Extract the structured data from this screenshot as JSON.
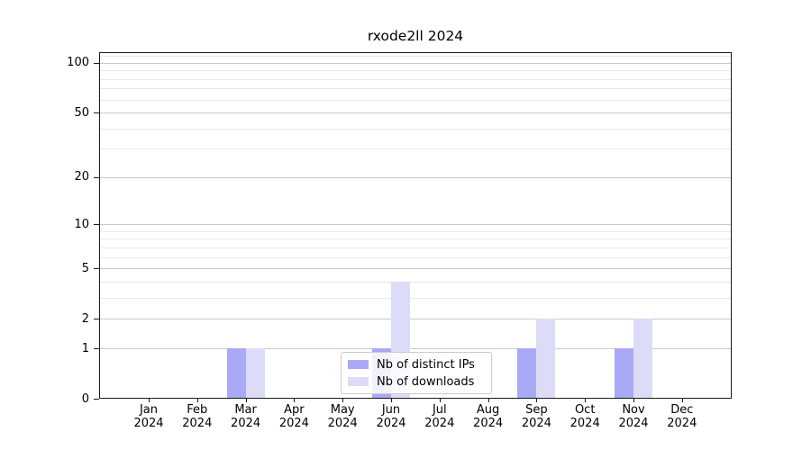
{
  "title": "rxode2ll 2024",
  "chart_data": {
    "type": "bar",
    "title": "rxode2ll 2024",
    "scale": "log1p",
    "grid": true,
    "ylim": [
      0,
      116
    ],
    "categories": [
      "Jan",
      "Feb",
      "Mar",
      "Apr",
      "May",
      "Jun",
      "Jul",
      "Aug",
      "Sep",
      "Oct",
      "Nov",
      "Dec"
    ],
    "x_tick_second_line": "2024",
    "yticks": [
      0,
      1,
      2,
      5,
      10,
      20,
      50,
      100
    ],
    "gridlines": {
      "major": [
        1,
        2,
        5,
        10,
        20,
        50,
        100
      ],
      "minor": [
        3,
        4,
        6,
        7,
        8,
        9,
        30,
        40,
        60,
        70,
        80,
        90,
        110
      ]
    },
    "series": [
      {
        "name": "Nb of distinct IPs",
        "color": "#a9a9f5",
        "values": [
          0,
          0,
          1,
          0,
          0,
          1,
          0,
          0,
          1,
          0,
          1,
          0
        ]
      },
      {
        "name": "Nb of downloads",
        "color": "#dcdcf8",
        "values": [
          0,
          0,
          1,
          0,
          0,
          4,
          0,
          0,
          2,
          0,
          2,
          0
        ]
      }
    ],
    "legend_position": "lower center"
  }
}
